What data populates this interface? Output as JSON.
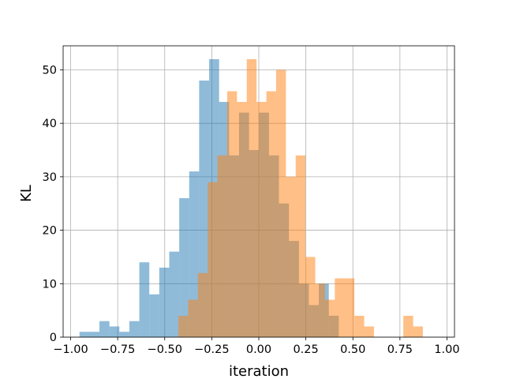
{
  "chart_data": {
    "type": "bar",
    "xlabel": "iteration",
    "ylabel": "KL",
    "xlim": [
      -1.04,
      1.04
    ],
    "ylim": [
      0,
      54.5
    ],
    "grid": true,
    "x_ticks": [
      -1.0,
      -0.75,
      -0.5,
      -0.25,
      0.0,
      0.25,
      0.5,
      0.75,
      1.0
    ],
    "x_tick_labels": [
      "−1.00",
      "−0.75",
      "−0.50",
      "−0.25",
      "0.00",
      "0.25",
      "0.50",
      "0.75",
      "1.00"
    ],
    "y_ticks": [
      0,
      10,
      20,
      30,
      40,
      50
    ],
    "y_tick_labels": [
      "0",
      "10",
      "20",
      "30",
      "40",
      "50"
    ],
    "series": [
      {
        "color": "#1f77b4",
        "bin_edges": [
          -0.953,
          -0.9,
          -0.847,
          -0.794,
          -0.741,
          -0.688,
          -0.635,
          -0.582,
          -0.529,
          -0.476,
          -0.423,
          -0.37,
          -0.317,
          -0.264,
          -0.211,
          -0.158,
          -0.105,
          -0.052,
          0.001,
          0.054,
          0.107,
          0.16,
          0.213,
          0.266,
          0.319,
          0.372,
          0.425,
          0.478,
          0.531
        ],
        "counts": [
          1,
          1,
          3,
          2,
          1,
          3,
          14,
          8,
          13,
          16,
          26,
          31,
          48,
          52,
          44,
          34,
          42,
          35,
          42,
          34,
          25,
          18,
          10,
          6,
          10,
          4,
          0,
          0
        ]
      },
      {
        "color": "#ff7f0e",
        "bin_edges": [
          -0.428,
          -0.376,
          -0.324,
          -0.272,
          -0.22,
          -0.168,
          -0.116,
          -0.064,
          -0.012,
          0.04,
          0.092,
          0.144,
          0.196,
          0.248,
          0.3,
          0.352,
          0.404,
          0.456,
          0.508,
          0.56,
          0.612,
          0.664,
          0.716,
          0.768,
          0.82,
          0.872,
          0.924
        ],
        "counts": [
          4,
          7,
          12,
          29,
          34,
          46,
          44,
          52,
          44,
          46,
          50,
          30,
          34,
          15,
          10,
          7,
          11,
          11,
          4,
          2,
          0,
          0,
          0,
          4,
          2,
          0
        ]
      }
    ]
  }
}
